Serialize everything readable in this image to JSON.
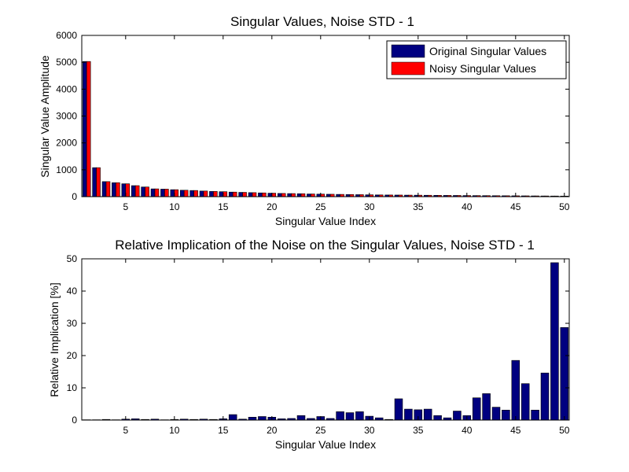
{
  "chart_data": [
    {
      "type": "bar",
      "title": "Singular Values, Noise STD - 1",
      "xlabel": "Singular Value Index",
      "ylabel": "Singular Value Amplitude",
      "xlim": [
        0.5,
        50.5
      ],
      "ylim": [
        0,
        6000
      ],
      "xticks": [
        5,
        10,
        15,
        20,
        25,
        30,
        35,
        40,
        45,
        50
      ],
      "yticks": [
        0,
        1000,
        2000,
        3000,
        4000,
        5000,
        6000
      ],
      "grid": false,
      "legend_position": "top-right",
      "categories": [
        1,
        2,
        3,
        4,
        5,
        6,
        7,
        8,
        9,
        10,
        11,
        12,
        13,
        14,
        15,
        16,
        17,
        18,
        19,
        20,
        21,
        22,
        23,
        24,
        25,
        26,
        27,
        28,
        29,
        30,
        31,
        32,
        33,
        34,
        35,
        36,
        37,
        38,
        39,
        40,
        41,
        42,
        43,
        44,
        45,
        46,
        47,
        48,
        49,
        50
      ],
      "series": [
        {
          "name": "Original Singular Values",
          "color": "#000080",
          "values": [
            5030,
            1080,
            560,
            520,
            480,
            410,
            360,
            290,
            280,
            260,
            240,
            230,
            210,
            195,
            185,
            170,
            160,
            150,
            140,
            130,
            120,
            115,
            110,
            100,
            95,
            90,
            85,
            80,
            75,
            70,
            65,
            62,
            60,
            57,
            55,
            52,
            50,
            47,
            45,
            42,
            40,
            38,
            36,
            34,
            32,
            30,
            28,
            26,
            24,
            22
          ]
        },
        {
          "name": "Noisy Singular Values",
          "color": "#ff0000",
          "values": [
            5030,
            1080,
            560,
            520,
            480,
            410,
            360,
            290,
            280,
            260,
            240,
            230,
            210,
            195,
            185,
            170,
            160,
            150,
            140,
            130,
            120,
            115,
            110,
            100,
            95,
            90,
            85,
            80,
            75,
            70,
            65,
            62,
            60,
            57,
            55,
            52,
            50,
            47,
            45,
            42,
            40,
            38,
            36,
            34,
            32,
            30,
            28,
            26,
            24,
            22
          ]
        }
      ]
    },
    {
      "type": "bar",
      "title": "Relative Implication of the Noise on the Singular Values, Noise STD - 1",
      "xlabel": "Singular Value Index",
      "ylabel": "Relative Implication [%]",
      "xlim": [
        0.5,
        50.5
      ],
      "ylim": [
        0,
        50
      ],
      "xticks": [
        5,
        10,
        15,
        20,
        25,
        30,
        35,
        40,
        45,
        50
      ],
      "yticks": [
        0,
        10,
        20,
        30,
        40,
        50
      ],
      "grid": false,
      "categories": [
        1,
        2,
        3,
        4,
        5,
        6,
        7,
        8,
        9,
        10,
        11,
        12,
        13,
        14,
        15,
        16,
        17,
        18,
        19,
        20,
        21,
        22,
        23,
        24,
        25,
        26,
        27,
        28,
        29,
        30,
        31,
        32,
        33,
        34,
        35,
        36,
        37,
        38,
        39,
        40,
        41,
        42,
        43,
        44,
        45,
        46,
        47,
        48,
        49,
        50
      ],
      "series": [
        {
          "color": "#000080",
          "values": [
            0.1,
            0.1,
            0.2,
            0.1,
            0.3,
            0.4,
            0.2,
            0.3,
            0.1,
            0.2,
            0.3,
            0.2,
            0.3,
            0.2,
            0.4,
            1.7,
            0.3,
            0.9,
            1.1,
            0.9,
            0.4,
            0.5,
            1.4,
            0.5,
            1.1,
            0.5,
            2.6,
            2.3,
            2.6,
            1.2,
            0.7,
            0.2,
            6.6,
            3.4,
            3.2,
            3.4,
            1.4,
            0.7,
            2.8,
            1.4,
            6.9,
            8.2,
            4.0,
            3.1,
            18.5,
            11.3,
            3.1,
            14.6,
            48.8,
            28.7
          ]
        }
      ]
    }
  ]
}
